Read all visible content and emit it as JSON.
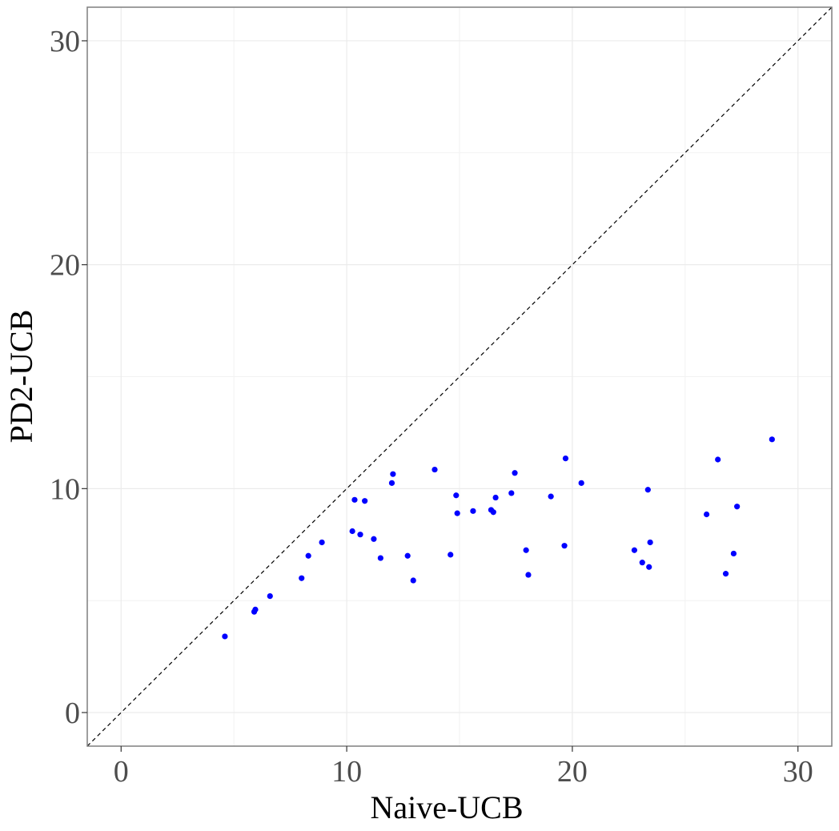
{
  "chart_data": {
    "type": "scatter",
    "title": "",
    "xlabel": "Naive-UCB",
    "ylabel": "PD2-UCB",
    "xlim": [
      -1.5,
      31.5
    ],
    "ylim": [
      -1.5,
      31.5
    ],
    "xticks": [
      0,
      10,
      20,
      30
    ],
    "yticks": [
      0,
      10,
      20,
      30
    ],
    "grid": true,
    "reference_line": "y = x (dashed)",
    "point_color": "#0000ff",
    "series": [
      {
        "points": [
          [
            4.6,
            3.4
          ],
          [
            5.9,
            4.5
          ],
          [
            5.95,
            4.6
          ],
          [
            6.6,
            5.2
          ],
          [
            8.0,
            6.0
          ],
          [
            8.3,
            7.0
          ],
          [
            8.9,
            7.6
          ],
          [
            10.25,
            8.1
          ],
          [
            10.35,
            9.5
          ],
          [
            10.6,
            7.95
          ],
          [
            10.8,
            9.45
          ],
          [
            11.2,
            7.75
          ],
          [
            11.5,
            6.9
          ],
          [
            12.0,
            10.25
          ],
          [
            12.05,
            10.65
          ],
          [
            12.7,
            7.0
          ],
          [
            12.95,
            5.9
          ],
          [
            13.9,
            10.85
          ],
          [
            14.6,
            7.05
          ],
          [
            14.85,
            9.7
          ],
          [
            14.9,
            8.9
          ],
          [
            15.6,
            9.0
          ],
          [
            16.4,
            9.05
          ],
          [
            16.5,
            8.95
          ],
          [
            16.6,
            9.6
          ],
          [
            17.3,
            9.8
          ],
          [
            17.45,
            10.7
          ],
          [
            17.95,
            7.25
          ],
          [
            18.05,
            6.15
          ],
          [
            19.05,
            9.65
          ],
          [
            19.65,
            7.45
          ],
          [
            19.7,
            11.35
          ],
          [
            20.4,
            10.25
          ],
          [
            22.75,
            7.25
          ],
          [
            23.1,
            6.7
          ],
          [
            23.35,
            9.95
          ],
          [
            23.4,
            6.5
          ],
          [
            23.45,
            7.6
          ],
          [
            25.95,
            8.85
          ],
          [
            26.45,
            11.3
          ],
          [
            26.8,
            6.2
          ],
          [
            27.15,
            7.1
          ],
          [
            27.3,
            9.2
          ],
          [
            28.85,
            12.2
          ]
        ]
      }
    ]
  }
}
